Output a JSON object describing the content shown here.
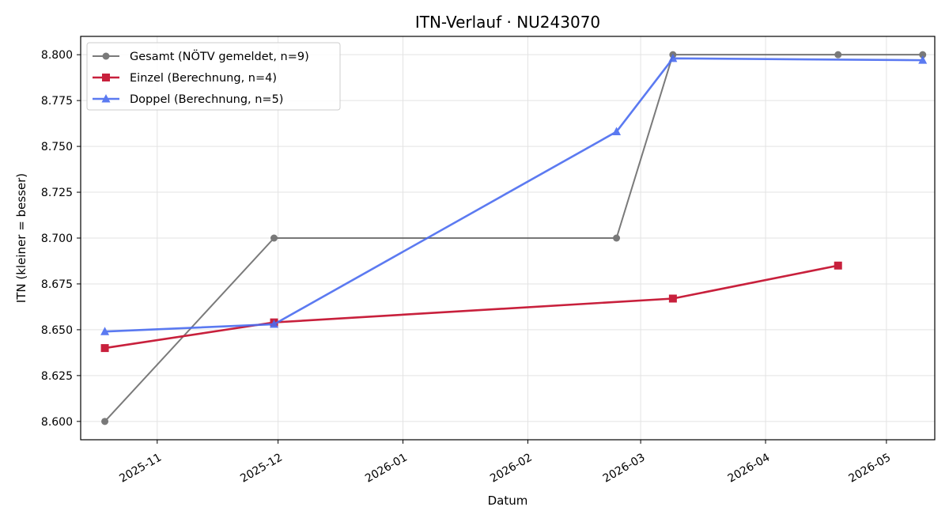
{
  "chart_data": {
    "type": "line",
    "title": "ITN-Verlauf · NU243070",
    "xlabel": "Datum",
    "ylabel": "ITN  (kleiner = besser)",
    "x_type": "date",
    "xlim": [
      "2025-10-13",
      "2026-05-13"
    ],
    "ylim": [
      8.59,
      8.81
    ],
    "grid": true,
    "legend_position": "top-left",
    "x_ticks": [
      "2025-11",
      "2025-12",
      "2026-01",
      "2026-02",
      "2026-03",
      "2026-04",
      "2026-05"
    ],
    "y_ticks": [
      "8.600",
      "8.625",
      "8.650",
      "8.675",
      "8.700",
      "8.725",
      "8.750",
      "8.775",
      "8.800"
    ],
    "series": [
      {
        "name": "Gesamt (NÖTV gemeldet, n=9)",
        "color": "#555555",
        "marker": "circle",
        "points": [
          {
            "x": "2025-10-19",
            "y": 8.6
          },
          {
            "x": "2025-11-30",
            "y": 8.7
          },
          {
            "x": "2026-02-23",
            "y": 8.7
          },
          {
            "x": "2026-03-09",
            "y": 8.8
          },
          {
            "x": "2026-04-19",
            "y": 8.8
          },
          {
            "x": "2026-05-10",
            "y": 8.8
          }
        ]
      },
      {
        "name": "Einzel (Berechnung, n=4)",
        "color": "#c8203c",
        "marker": "square",
        "points": [
          {
            "x": "2025-10-19",
            "y": 8.64
          },
          {
            "x": "2025-11-30",
            "y": 8.654
          },
          {
            "x": "2026-03-09",
            "y": 8.667
          },
          {
            "x": "2026-04-19",
            "y": 8.685
          }
        ]
      },
      {
        "name": "Doppel (Berechnung, n=5)",
        "color": "#4a6cf0",
        "marker": "triangle",
        "points": [
          {
            "x": "2025-10-19",
            "y": 8.649
          },
          {
            "x": "2025-11-30",
            "y": 8.653
          },
          {
            "x": "2026-02-23",
            "y": 8.758
          },
          {
            "x": "2026-03-09",
            "y": 8.798
          },
          {
            "x": "2026-05-10",
            "y": 8.797
          }
        ]
      }
    ]
  }
}
